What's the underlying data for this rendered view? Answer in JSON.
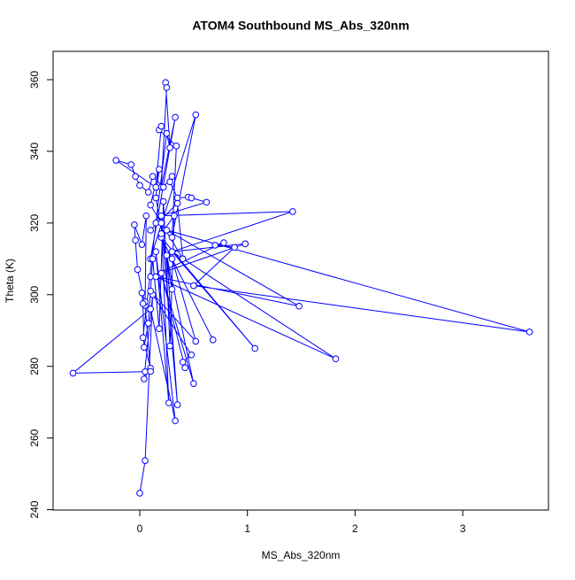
{
  "chart_data": {
    "type": "scatter",
    "mode": "lines+markers",
    "title": "ATOM4 Southbound MS_Abs_320nm",
    "x_label": "MS_Abs_320nm",
    "y_label": "Theta (K)",
    "color": "#0000ff",
    "x": [
      0.0,
      0.05,
      0.12,
      0.04,
      0.1,
      0.03,
      0.15,
      0.25,
      0.28,
      0.24,
      0.25,
      0.2,
      0.33,
      0.1,
      0.52,
      0.3,
      0.34,
      0.18,
      0.2,
      0.15,
      -0.22,
      -0.08,
      -0.04,
      0.0,
      0.08,
      0.12,
      0.22,
      0.3,
      0.28,
      0.35,
      0.45,
      0.48,
      0.62,
      0.2,
      1.42,
      0.3,
      0.98,
      0.1,
      0.78,
      0.7,
      0.88,
      0.5,
      3.62,
      0.25,
      1.48,
      0.15,
      1.82,
      0.3,
      1.07,
      0.2,
      0.68,
      0.3,
      0.52,
      0.1,
      0.48,
      0.4,
      0.42,
      0.2,
      0.5,
      0.25,
      0.35,
      0.2,
      0.27,
      0.15,
      0.33,
      0.1,
      -0.62,
      0.05,
      0.1,
      0.05,
      -0.02,
      -0.04,
      -0.05,
      0.02,
      0.06,
      0.05,
      0.02,
      0.03,
      0.04,
      0.08,
      0.12,
      0.18,
      0.22,
      0.28,
      0.32,
      0.2,
      0.3,
      0.15,
      0.18,
      0.1,
      0.4,
      0.35,
      0.1
    ],
    "values": [
      244.6,
      253.7,
      300,
      276.5,
      279.5,
      288,
      320,
      345,
      341,
      359.2,
      357.8,
      330,
      349.5,
      310,
      350.2,
      316,
      341.5,
      346,
      347,
      330,
      337.5,
      336.3,
      333,
      330.5,
      328.6,
      333,
      330,
      333,
      331.5,
      327,
      327.2,
      327,
      325.8,
      322,
      323.2,
      312,
      314.2,
      305,
      314.5,
      313.8,
      313.2,
      302.5,
      289.6,
      318,
      296.8,
      305,
      282.1,
      312,
      285,
      316,
      287.4,
      310,
      287,
      301,
      283.2,
      281.2,
      279.6,
      306,
      275.2,
      311,
      269.3,
      320,
      269.8,
      312,
      264.8,
      296,
      278.1,
      278.5,
      278.6,
      297,
      307,
      315.2,
      319.5,
      314,
      322,
      298,
      300.5,
      297.5,
      285.3,
      292,
      310,
      290.5,
      326,
      285.7,
      322,
      317,
      301.5,
      327,
      335,
      325,
      310,
      325.5,
      318
    ],
    "xlim": [
      -0.805,
      3.796
    ],
    "ylim": [
      239.9,
      367.9
    ],
    "xticks": [
      0,
      1,
      2,
      3
    ],
    "yticks": [
      240,
      260,
      280,
      300,
      320,
      340,
      360
    ]
  }
}
